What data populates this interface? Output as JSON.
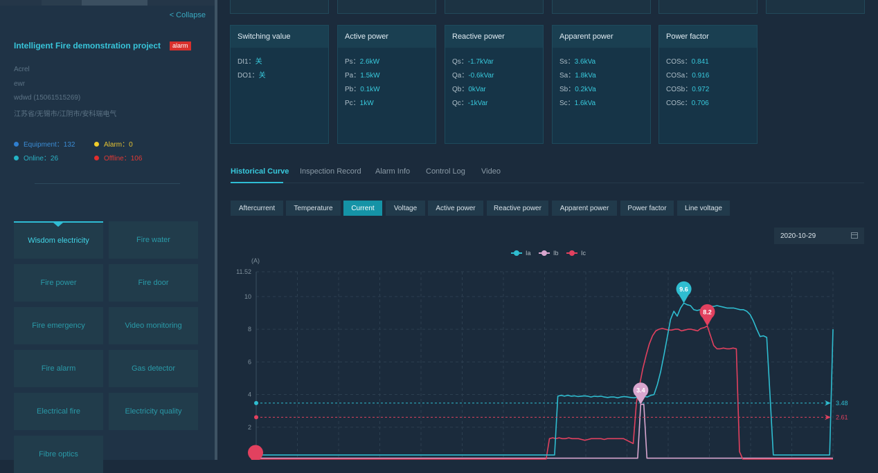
{
  "sidebar": {
    "collapse_label": "< Collapse",
    "project_title": "Intelligent Fire demonstration project",
    "alarm_badge": "alarm",
    "info": [
      "Acrel",
      "ewr",
      "wdwd (15061515269)",
      "江苏省/无锡市/江阴市/安科瑞电气"
    ],
    "stats": {
      "equipment": "Equipment：132",
      "alarm": "Alarm：0",
      "online": "Online：26",
      "offline": "Offline：106"
    },
    "tiles": [
      "Wisdom electricity",
      "Fire water",
      "Fire power",
      "Fire door",
      "Fire emergency",
      "Video monitoring",
      "Fire alarm",
      "Gas detector",
      "Electrical fire",
      "Electricity quality",
      "Fibre optics"
    ],
    "active_tile": "Wisdom electricity"
  },
  "cards": [
    {
      "title": "Switching value",
      "rows": [
        {
          "k": "DI1：",
          "v": "关"
        },
        {
          "k": "DO1：",
          "v": "关"
        }
      ]
    },
    {
      "title": "Active power",
      "rows": [
        {
          "k": "Ps：",
          "v": "2.6kW"
        },
        {
          "k": "Pa：",
          "v": "1.5kW"
        },
        {
          "k": "Pb：",
          "v": "0.1kW"
        },
        {
          "k": "Pc：",
          "v": "1kW"
        }
      ]
    },
    {
      "title": "Reactive power",
      "rows": [
        {
          "k": "Qs：",
          "v": "-1.7kVar"
        },
        {
          "k": "Qa：",
          "v": "-0.6kVar"
        },
        {
          "k": "Qb：",
          "v": "0kVar"
        },
        {
          "k": "Qc：",
          "v": "-1kVar"
        }
      ]
    },
    {
      "title": "Apparent power",
      "rows": [
        {
          "k": "Ss：",
          "v": "3.6kVa"
        },
        {
          "k": "Sa：",
          "v": "1.8kVa"
        },
        {
          "k": "Sb：",
          "v": "0.2kVa"
        },
        {
          "k": "Sc：",
          "v": "1.6kVa"
        }
      ]
    },
    {
      "title": "Power factor",
      "rows": [
        {
          "k": "COSs：",
          "v": "0.841"
        },
        {
          "k": "COSa：",
          "v": "0.916"
        },
        {
          "k": "COSb：",
          "v": "0.972"
        },
        {
          "k": "COSc：",
          "v": "0.706"
        }
      ]
    }
  ],
  "tabs": [
    "Historical Curve",
    "Inspection Record",
    "Alarm Info",
    "Control Log",
    "Video"
  ],
  "active_tab": "Historical Curve",
  "sub_buttons": [
    "Aftercurrent",
    "Temperature",
    "Current",
    "Voltage",
    "Active power",
    "Reactive power",
    "Apparent power",
    "Power factor",
    "Line voltage"
  ],
  "active_sub_button": "Current",
  "date": "2020-10-29",
  "colors": {
    "ia": "#2fbdd0",
    "ib": "#d9a6cf",
    "ic": "#e2415f",
    "accent": "#2fbdd4"
  },
  "chart_data": {
    "type": "line",
    "unit_label": "(A)",
    "y_ticks": [
      "11.52",
      "10",
      "8",
      "6",
      "4",
      "2"
    ],
    "ylim": [
      0,
      11.52
    ],
    "series": [
      {
        "name": "Ia",
        "color": "#2fbdd0",
        "values": [
          0.3,
          0.3,
          0.3,
          0.3,
          0.3,
          0.3,
          0.3,
          0.3,
          0.3,
          0.3,
          0.3,
          0.3,
          0.3,
          0.3,
          0.3,
          0.3,
          0.3,
          0.3,
          0.3,
          0.3,
          0.3,
          0.3,
          0.3,
          0.3,
          0.3,
          0.3,
          0.3,
          0.3,
          0.3,
          0.3,
          0.3,
          0.3,
          0.3,
          0.3,
          0.3,
          0.3,
          0.3,
          0.3,
          0.3,
          0.3,
          0.3,
          0.3,
          0.3,
          0.3,
          0.3,
          0.3,
          0.3,
          0.3,
          0.3,
          0.3,
          0.3,
          0.3,
          0.3,
          0.3,
          0.3,
          0.3,
          0.3,
          0.3,
          0.3,
          0.3,
          0.3,
          0.3,
          0.3,
          0.3,
          0.3,
          0.3,
          0.3,
          0.3,
          0.3,
          0.3,
          0.3,
          0.3,
          0.3,
          0.3,
          0.3,
          0.3,
          0.3,
          0.3,
          0.3,
          0.3,
          0.3,
          0.3,
          0.3,
          0.3,
          0.3,
          0.3,
          0.3,
          0.3,
          0.3,
          0.3,
          0.3,
          3.9,
          3.95,
          3.9,
          3.95,
          3.9,
          3.92,
          3.88,
          3.9,
          3.92,
          3.9,
          3.85,
          3.9,
          3.88,
          3.9,
          3.85,
          3.82,
          3.85,
          3.85,
          3.8,
          3.85,
          3.88,
          3.85,
          3.82,
          3.8,
          3.85,
          3.9,
          3.88,
          3.85,
          3.95,
          4.0,
          4.6,
          5.4,
          6.4,
          7.5,
          8.6,
          9.1,
          8.8,
          9.3,
          9.6,
          9.5,
          9.45,
          9.2,
          9.15,
          9.2,
          9.3,
          9.35,
          9.4,
          9.4,
          9.45,
          9.4,
          9.35,
          9.3,
          9.3,
          9.3,
          9.25,
          9.2,
          9.2,
          9.1,
          8.9,
          8.5,
          8.0,
          7.55,
          7.6,
          7.5,
          4.0,
          0.3,
          0.3,
          0.3,
          0.3,
          0.3,
          0.3,
          0.3,
          0.3,
          0.3,
          0.3,
          0.3,
          0.3,
          0.3,
          0.3,
          0.3,
          0.3,
          0.3,
          0.3,
          8.0
        ]
      },
      {
        "name": "Ib",
        "color": "#d9a6cf",
        "values": [
          0.1,
          0.1,
          0.1,
          0.1,
          0.1,
          0.1,
          0.1,
          0.1,
          0.1,
          0.1,
          0.1,
          0.1,
          0.1,
          0.1,
          0.1,
          0.1,
          0.1,
          0.1,
          0.1,
          0.1,
          0.1,
          0.1,
          0.1,
          0.1,
          0.1,
          0.1,
          0.1,
          0.1,
          0.1,
          0.1,
          0.1,
          0.1,
          0.1,
          0.1,
          0.1,
          0.1,
          0.1,
          0.1,
          0.1,
          0.1,
          0.1,
          0.1,
          0.1,
          0.1,
          0.1,
          0.1,
          0.1,
          0.1,
          0.1,
          0.1,
          0.1,
          0.1,
          0.1,
          0.1,
          0.1,
          0.1,
          0.1,
          0.1,
          0.1,
          0.1,
          0.1,
          0.1,
          0.1,
          0.1,
          0.1,
          0.1,
          0.1,
          0.1,
          0.1,
          0.1,
          0.1,
          0.1,
          0.1,
          0.1,
          0.1,
          0.1,
          0.1,
          0.1,
          0.1,
          0.1,
          0.1,
          0.1,
          0.1,
          0.1,
          0.1,
          0.1,
          0.1,
          0.1,
          0.1,
          0.1,
          0.1,
          0.1,
          0.1,
          0.1,
          0.1,
          0.1,
          0.1,
          0.1,
          0.1,
          0.1,
          0.1,
          0.1,
          0.1,
          0.1,
          0.1,
          0.1,
          0.1,
          0.1,
          0.1,
          0.1,
          0.1,
          0.1,
          0.1,
          0.1,
          0.1,
          0.1,
          0.1,
          0.1,
          0.1,
          0.1,
          0.1,
          0.1,
          0.1,
          0.1,
          3.4,
          3.4,
          0.1,
          0.1,
          0.1,
          0.1,
          0.1,
          0.1,
          0.1,
          0.1,
          0.1,
          0.1,
          0.1,
          0.1,
          0.1,
          0.1,
          0.1,
          0.1,
          0.1,
          0.1,
          0.1,
          0.1,
          0.1,
          0.1,
          0.1,
          0.1,
          0.1,
          0.1,
          0.1,
          0.1,
          0.1,
          0.1,
          0.1,
          0.1,
          0.1,
          0.1,
          0.1,
          0.1,
          0.1,
          0.1,
          0.1,
          0.1,
          0.1,
          0.1,
          0.1,
          0.1,
          0.1,
          0.1,
          0.1,
          0.1,
          0.1,
          0.1,
          0.1,
          0.1,
          0.1,
          0.1,
          0.1,
          0.1,
          0.1,
          0.1,
          0.1,
          0.1,
          0.1
        ]
      },
      {
        "name": "Ic",
        "color": "#e2415f",
        "values": [
          0.05,
          0.05,
          0.05,
          0.05,
          0.05,
          0.05,
          0.05,
          0.05,
          0.05,
          0.05,
          0.05,
          0.05,
          0.05,
          0.05,
          0.05,
          0.05,
          0.05,
          0.05,
          0.05,
          0.05,
          0.05,
          0.05,
          0.05,
          0.05,
          0.05,
          0.05,
          0.05,
          0.05,
          0.05,
          0.05,
          0.05,
          0.05,
          0.05,
          0.05,
          0.05,
          0.05,
          0.05,
          0.05,
          0.05,
          0.05,
          0.05,
          0.05,
          0.05,
          0.05,
          0.05,
          0.05,
          0.05,
          0.05,
          0.05,
          0.05,
          0.05,
          0.05,
          0.05,
          0.05,
          0.05,
          0.05,
          0.05,
          0.05,
          0.05,
          0.05,
          0.05,
          0.05,
          0.05,
          0.05,
          0.05,
          0.05,
          0.05,
          0.05,
          0.05,
          0.05,
          0.05,
          0.05,
          0.05,
          0.05,
          0.05,
          0.05,
          0.05,
          0.05,
          0.05,
          0.05,
          0.05,
          0.05,
          0.05,
          0.05,
          0.05,
          0.05,
          0.05,
          0.05,
          0.05,
          0.05,
          0.05,
          1.3,
          1.35,
          1.3,
          1.35,
          1.3,
          1.3,
          1.35,
          1.3,
          1.3,
          1.3,
          1.25,
          1.2,
          1.25,
          1.3,
          1.3,
          1.3,
          1.3,
          1.25,
          1.3,
          1.3,
          1.3,
          1.3,
          1.3,
          1.3,
          1.2,
          1.1,
          1.0,
          3.5,
          4.6,
          5.6,
          6.4,
          7.1,
          7.6,
          7.9,
          8.0,
          8.05,
          8.0,
          7.95,
          7.95,
          8.0,
          8.0,
          7.9,
          7.95,
          8.0,
          8.0,
          7.95,
          7.9,
          8.05,
          8.1,
          8.2,
          7.6,
          7.0,
          6.8,
          6.8,
          6.85,
          6.8,
          6.8,
          6.85,
          6.8,
          0.5,
          0.05,
          0.05,
          0.05,
          0.05,
          0.05,
          0.05,
          0.05,
          0.05,
          0.05,
          0.05,
          0.05,
          0.05,
          0.05,
          0.05,
          0.05,
          0.05,
          0.05,
          0.05,
          0.05,
          0.05,
          0.05,
          0.05,
          0.05,
          0.05,
          0.05,
          0.05,
          0.05,
          0.05,
          0.05
        ]
      }
    ],
    "markers": [
      {
        "series": "Ia",
        "label": "9.6",
        "value": 9.6
      },
      {
        "series": "Ic",
        "label": "8.2",
        "value": 8.2
      },
      {
        "series": "Ib",
        "label": "3.4",
        "value": 3.4
      }
    ],
    "mark_lines": [
      {
        "series": "Ia",
        "label": "3.48",
        "value": 3.48
      },
      {
        "series": "Ic",
        "label": "2.61",
        "value": 2.61
      }
    ]
  }
}
